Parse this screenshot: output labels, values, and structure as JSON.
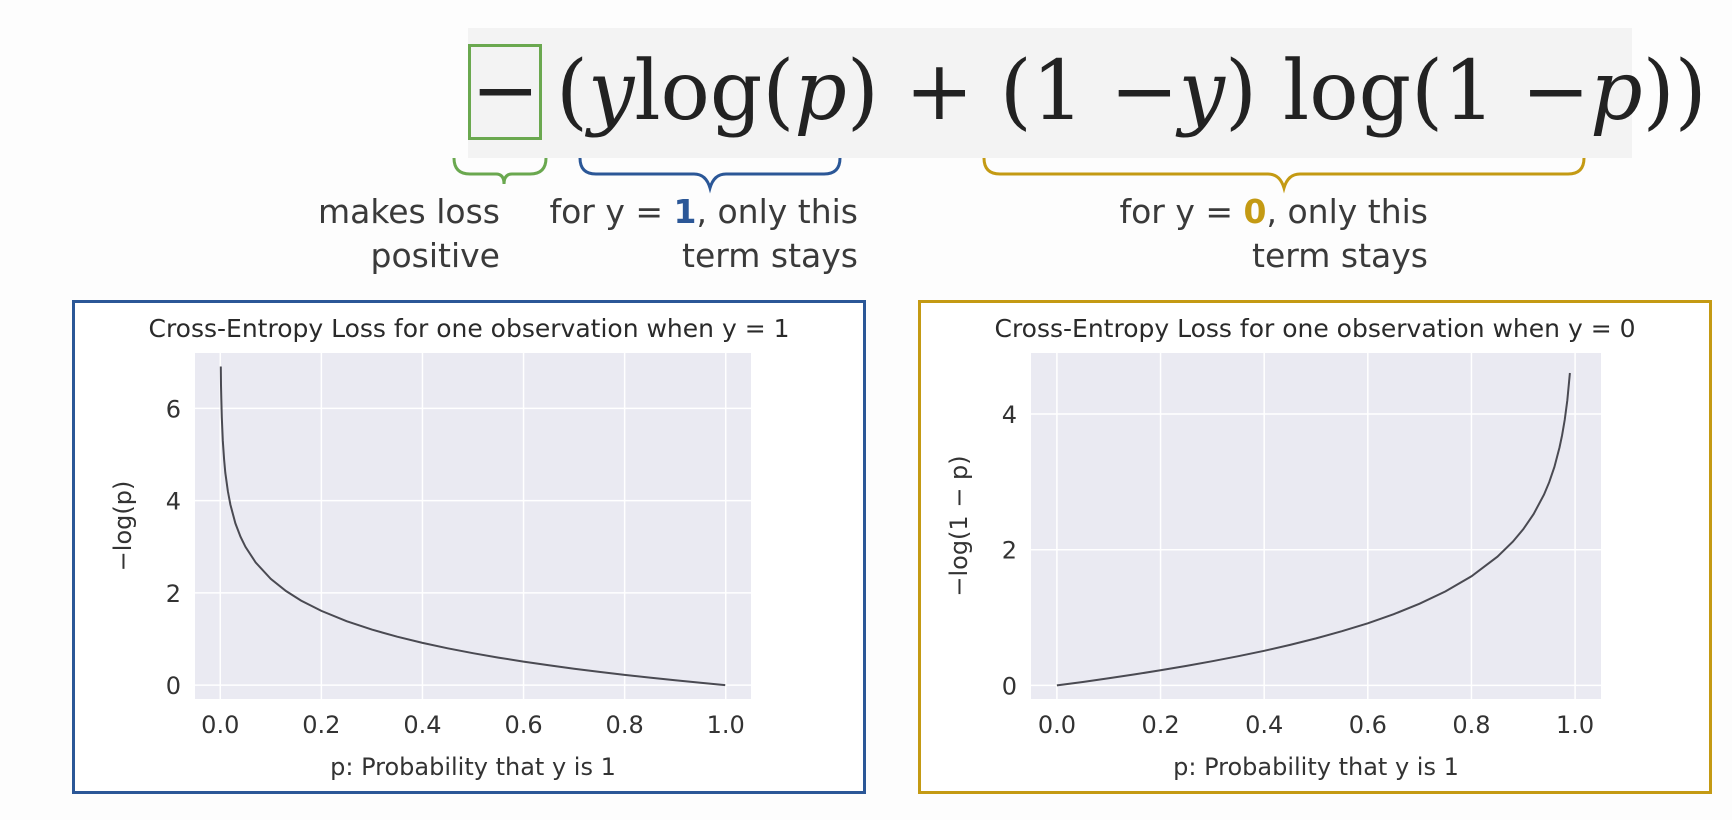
{
  "formula": {
    "minus": "−",
    "part1": "(",
    "y1": "y",
    "log1": " log(",
    "p1": "p",
    "part2": ") + (1 − ",
    "y2": "y",
    "part3": ") log(1 − ",
    "p2": "p",
    "part4": "))"
  },
  "annotations": {
    "sign": {
      "line1": "makes loss",
      "line2": "positive"
    },
    "y1": {
      "prefix": "for y = ",
      "value": "1",
      "suffix": ", only this",
      "line2": "term stays"
    },
    "y0": {
      "prefix": "for y = ",
      "value": "0",
      "suffix": ", only this",
      "line2": "term stays"
    }
  },
  "colors": {
    "green": "#6aa84f",
    "blue": "#2b5797",
    "gold": "#c49a13",
    "plot_bg": "#eaeaf2",
    "curve": "#4a4a52"
  },
  "chart_data": [
    {
      "type": "line",
      "title": "Cross-Entropy Loss for one observation when y = 1",
      "xlabel": "p: Probability that y is 1",
      "ylabel": "−log(p)",
      "xlim": [
        -0.05,
        1.05
      ],
      "ylim": [
        -0.3,
        7.2
      ],
      "xticks": [
        0.0,
        0.2,
        0.4,
        0.6,
        0.8,
        1.0
      ],
      "xtick_labels": [
        "0.0",
        "0.2",
        "0.4",
        "0.6",
        "0.8",
        "1.0"
      ],
      "yticks": [
        0,
        2,
        4,
        6
      ],
      "ytick_labels": [
        "0",
        "2",
        "4",
        "6"
      ],
      "grid": true,
      "series": [
        {
          "x": [
            0.001,
            0.0015,
            0.002,
            0.003,
            0.005,
            0.0075,
            0.01,
            0.015,
            0.02,
            0.03,
            0.04,
            0.05,
            0.07,
            0.1,
            0.13,
            0.16,
            0.2,
            0.25,
            0.3,
            0.35,
            0.4,
            0.45,
            0.5,
            0.55,
            0.6,
            0.65,
            0.7,
            0.75,
            0.8,
            0.85,
            0.9,
            0.95,
            0.999
          ],
          "y": [
            6.908,
            6.502,
            6.215,
            5.809,
            5.298,
            4.893,
            4.605,
            4.2,
            3.912,
            3.507,
            3.219,
            2.996,
            2.659,
            2.303,
            2.04,
            1.833,
            1.609,
            1.386,
            1.204,
            1.05,
            0.916,
            0.799,
            0.693,
            0.598,
            0.511,
            0.431,
            0.357,
            0.288,
            0.223,
            0.163,
            0.105,
            0.051,
            0.001
          ]
        }
      ]
    },
    {
      "type": "line",
      "title": "Cross-Entropy Loss for one observation when y = 0",
      "xlabel": "p: Probability that y is 1",
      "ylabel": "−log(1 − p)",
      "xlim": [
        -0.05,
        1.05
      ],
      "ylim": [
        -0.2,
        4.9
      ],
      "xticks": [
        0.0,
        0.2,
        0.4,
        0.6,
        0.8,
        1.0
      ],
      "xtick_labels": [
        "0.0",
        "0.2",
        "0.4",
        "0.6",
        "0.8",
        "1.0"
      ],
      "yticks": [
        0,
        2,
        4
      ],
      "ytick_labels": [
        "0",
        "2",
        "4"
      ],
      "grid": true,
      "series": [
        {
          "x": [
            0.0,
            0.05,
            0.1,
            0.15,
            0.2,
            0.25,
            0.3,
            0.35,
            0.4,
            0.45,
            0.5,
            0.55,
            0.6,
            0.65,
            0.7,
            0.75,
            0.8,
            0.85,
            0.88,
            0.9,
            0.92,
            0.94,
            0.95,
            0.96,
            0.97,
            0.975,
            0.98,
            0.985,
            0.99
          ],
          "y": [
            0.0,
            0.051,
            0.105,
            0.163,
            0.223,
            0.288,
            0.357,
            0.431,
            0.511,
            0.598,
            0.693,
            0.799,
            0.916,
            1.05,
            1.204,
            1.386,
            1.609,
            1.897,
            2.12,
            2.303,
            2.526,
            2.813,
            2.996,
            3.219,
            3.507,
            3.689,
            3.912,
            4.2,
            4.605
          ]
        }
      ]
    }
  ]
}
